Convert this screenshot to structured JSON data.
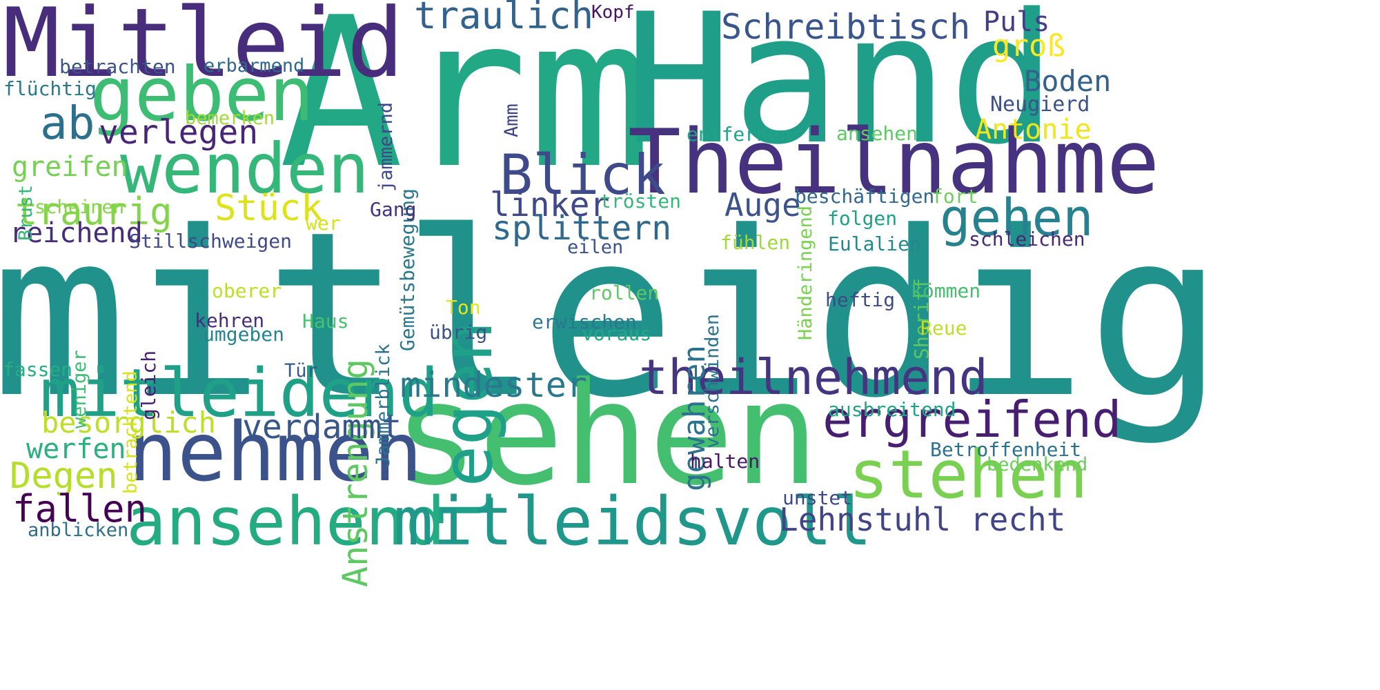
{
  "words": [
    {
      "text": "mitleidig",
      "color": "#21918c",
      "vertical": false
    },
    {
      "text": "Arm",
      "color": "#22a884",
      "vertical": false
    },
    {
      "text": "Hand",
      "color": "#1f9e89",
      "vertical": false
    },
    {
      "text": "sehen",
      "color": "#44bf70",
      "vertical": false
    },
    {
      "text": "Mitleid",
      "color": "#472d7b",
      "vertical": false
    },
    {
      "text": "Theilnahme",
      "color": "#46327e",
      "vertical": false
    },
    {
      "text": "geben",
      "color": "#3dbc74",
      "vertical": false
    },
    {
      "text": "wenden",
      "color": "#35b779",
      "vertical": false
    },
    {
      "text": "legen",
      "color": "#1fa088",
      "vertical": true
    },
    {
      "text": "nehmen",
      "color": "#3b528b",
      "vertical": false
    },
    {
      "text": "ansehend",
      "color": "#25ab82",
      "vertical": false
    },
    {
      "text": "mitleidsvoll",
      "color": "#1f988b",
      "vertical": false
    },
    {
      "text": "mitleidend",
      "color": "#1fa187",
      "vertical": false
    },
    {
      "text": "stehen",
      "color": "#7ad151",
      "vertical": false
    },
    {
      "text": "ergreifend",
      "color": "#481f70",
      "vertical": false
    },
    {
      "text": "theilnehmend",
      "color": "#453581",
      "vertical": false
    },
    {
      "text": "Blick",
      "color": "#3e4a89",
      "vertical": false
    },
    {
      "text": "ab",
      "color": "#2d708e",
      "vertical": false
    },
    {
      "text": "gehen",
      "color": "#26828e",
      "vertical": false
    },
    {
      "text": "Anstrengung",
      "color": "#5ec962",
      "vertical": true
    },
    {
      "text": "gewahren",
      "color": "#2c728e",
      "vertical": true
    },
    {
      "text": "traulich",
      "color": "#33638d",
      "vertical": false
    },
    {
      "text": "Schreibtisch",
      "color": "#3a548c",
      "vertical": false
    },
    {
      "text": "verlegen",
      "color": "#482576",
      "vertical": false
    },
    {
      "text": "linker",
      "color": "#3f4889",
      "vertical": false
    },
    {
      "text": "splittern",
      "color": "#31688e",
      "vertical": false
    },
    {
      "text": "Auge",
      "color": "#3b528b",
      "vertical": false
    },
    {
      "text": "Stück",
      "color": "#dde318",
      "vertical": false
    },
    {
      "text": "traurig",
      "color": "#84d44b",
      "vertical": false
    },
    {
      "text": "mindester",
      "color": "#2a788e",
      "vertical": false
    },
    {
      "text": "verdammt",
      "color": "#39568c",
      "vertical": false
    },
    {
      "text": "Lehnstuhl recht",
      "color": "#414487",
      "vertical": false
    },
    {
      "text": "Degen",
      "color": "#b5de2b",
      "vertical": false
    },
    {
      "text": "werfen",
      "color": "#2ab07f",
      "vertical": false
    },
    {
      "text": "fallen",
      "color": "#440154",
      "vertical": false
    },
    {
      "text": "besorglich",
      "color": "#bddf26",
      "vertical": false
    },
    {
      "text": "reichend",
      "color": "#472c7a",
      "vertical": false
    },
    {
      "text": "greifen",
      "color": "#75d054",
      "vertical": false
    },
    {
      "text": "Puls",
      "color": "#433e85",
      "vertical": false
    },
    {
      "text": "groß",
      "color": "#fde725",
      "vertical": false
    },
    {
      "text": "Boden",
      "color": "#33638d",
      "vertical": false
    },
    {
      "text": "Antonie",
      "color": "#f1e51d",
      "vertical": false
    },
    {
      "text": "Neugierd",
      "color": "#3b528b",
      "vertical": false
    },
    {
      "text": "Kopf",
      "color": "#471365",
      "vertical": false
    },
    {
      "text": "betrachten",
      "color": "#3b528b",
      "vertical": false
    },
    {
      "text": "erbarmend",
      "color": "#31688e",
      "vertical": false
    },
    {
      "text": "flüchtig",
      "color": "#2a788e",
      "vertical": false
    },
    {
      "text": "bemerken",
      "color": "#a0da39",
      "vertical": false
    },
    {
      "text": "Brust",
      "color": "#35b779",
      "vertical": true
    },
    {
      "text": "scheinen",
      "color": "#86d549",
      "vertical": false
    },
    {
      "text": "jammernd",
      "color": "#3e4989",
      "vertical": true
    },
    {
      "text": "Gemütsbewegung",
      "color": "#2a788e",
      "vertical": true
    },
    {
      "text": "Amm",
      "color": "#414487",
      "vertical": true
    },
    {
      "text": "Gang",
      "color": "#46327e",
      "vertical": false
    },
    {
      "text": "wer",
      "color": "#d2e21b",
      "vertical": false
    },
    {
      "text": "Stillschweigen",
      "color": "#3e4a89",
      "vertical": false
    },
    {
      "text": "entfernen",
      "color": "#20a486",
      "vertical": false
    },
    {
      "text": "ansehen",
      "color": "#5ec962",
      "vertical": false
    },
    {
      "text": "Händeringend",
      "color": "#7ad151",
      "vertical": true
    },
    {
      "text": "trösten",
      "color": "#35b779",
      "vertical": false
    },
    {
      "text": "beschäftigen",
      "color": "#31688e",
      "vertical": false
    },
    {
      "text": "fort",
      "color": "#6ccd5a",
      "vertical": false
    },
    {
      "text": "folgen",
      "color": "#1fa188",
      "vertical": false
    },
    {
      "text": "Sheriff",
      "color": "#5ec962",
      "vertical": true
    },
    {
      "text": "eilen",
      "color": "#3b528b",
      "vertical": false
    },
    {
      "text": "fühlen",
      "color": "#9fda3a",
      "vertical": false
    },
    {
      "text": "Eulalien",
      "color": "#23888e",
      "vertical": false
    },
    {
      "text": "schleichen",
      "color": "#482878",
      "vertical": false
    },
    {
      "text": "verschwinden",
      "color": "#2c728e",
      "vertical": true
    },
    {
      "text": "Jammerblick",
      "color": "#2c728e",
      "vertical": true
    },
    {
      "text": "betrachtend",
      "color": "#d8e219",
      "vertical": true
    },
    {
      "text": "oberer",
      "color": "#bddf26",
      "vertical": false
    },
    {
      "text": "rollen",
      "color": "#5ec962",
      "vertical": false
    },
    {
      "text": "kömmen",
      "color": "#44bf70",
      "vertical": false
    },
    {
      "text": "heftig",
      "color": "#3e4a89",
      "vertical": false
    },
    {
      "text": "Ton",
      "color": "#e7e419",
      "vertical": false
    },
    {
      "text": "gleich",
      "color": "#482173",
      "vertical": true
    },
    {
      "text": "weniger",
      "color": "#3dbc74",
      "vertical": true
    },
    {
      "text": "kehren",
      "color": "#472d7b",
      "vertical": false
    },
    {
      "text": "Haus",
      "color": "#48c16e",
      "vertical": false
    },
    {
      "text": "umgeben",
      "color": "#25858e",
      "vertical": false
    },
    {
      "text": "übrig",
      "color": "#3b528b",
      "vertical": false
    },
    {
      "text": "erwischen",
      "color": "#2a788e",
      "vertical": false
    },
    {
      "text": "voraus",
      "color": "#22a884",
      "vertical": false
    },
    {
      "text": "Reue",
      "color": "#bddf26",
      "vertical": false
    },
    {
      "text": "fassen",
      "color": "#27ad81",
      "vertical": false
    },
    {
      "text": "Tür",
      "color": "#38598c",
      "vertical": false
    },
    {
      "text": "ausbreitend",
      "color": "#20a486",
      "vertical": false
    },
    {
      "text": "Betroffenheit",
      "color": "#2c728e",
      "vertical": false
    },
    {
      "text": "bedenkend",
      "color": "#6ccd5a",
      "vertical": false
    },
    {
      "text": "halten",
      "color": "#481769",
      "vertical": false
    },
    {
      "text": "unstet",
      "color": "#3e4989",
      "vertical": false
    },
    {
      "text": "anblicken",
      "color": "#2f6c8e",
      "vertical": false
    }
  ]
}
